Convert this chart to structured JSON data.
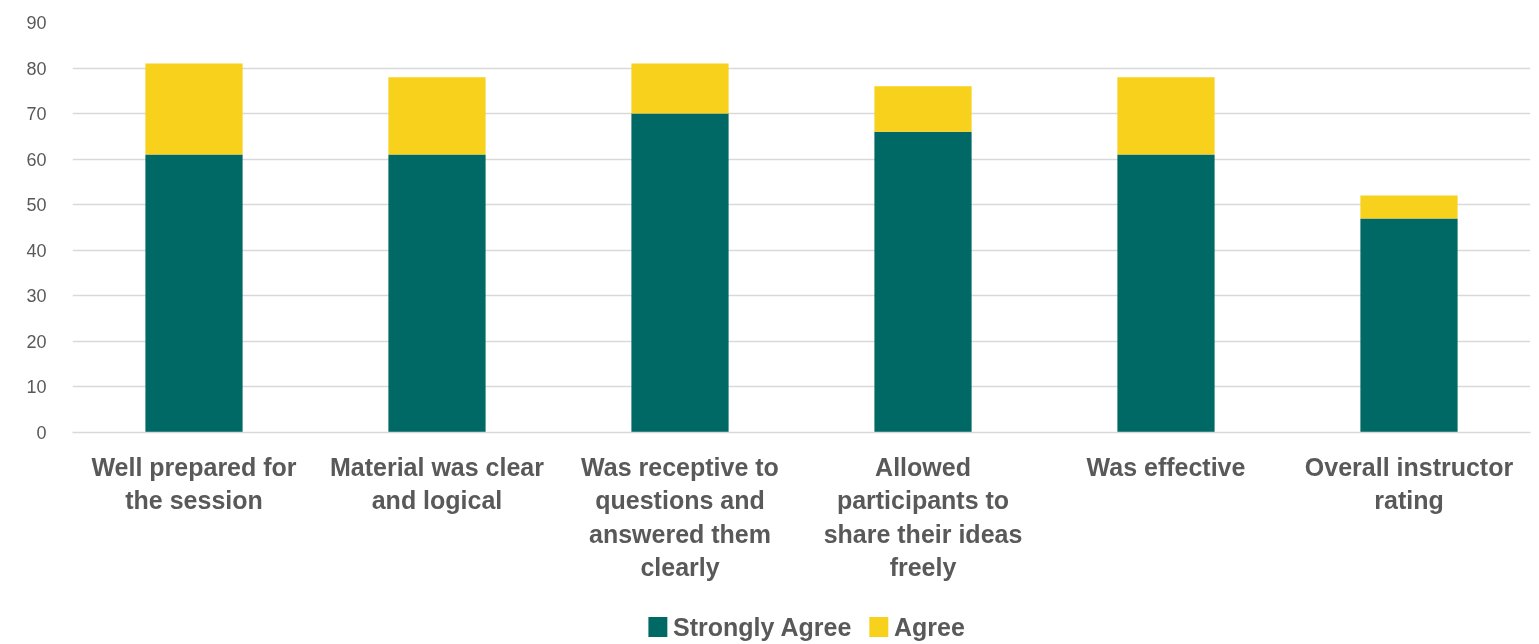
{
  "chart_data": {
    "type": "bar",
    "stacked": true,
    "categories": [
      "Well prepared for the session",
      "Material was clear and logical",
      "Was receptive to questions and answered them clearly",
      "Allowed participants to share their ideas freely",
      "Was effective",
      "Overall instructor rating"
    ],
    "series": [
      {
        "name": "Strongly Agree",
        "color": "#006865",
        "values": [
          61,
          61,
          70,
          66,
          61,
          47
        ]
      },
      {
        "name": "Agree",
        "color": "#f7d11b",
        "values": [
          20,
          17,
          11,
          10,
          17,
          5
        ]
      }
    ],
    "ylim": [
      0,
      90
    ],
    "yticks": [
      0,
      10,
      20,
      30,
      40,
      50,
      60,
      70,
      80,
      90
    ],
    "grid": "y",
    "legend": "bottom"
  }
}
